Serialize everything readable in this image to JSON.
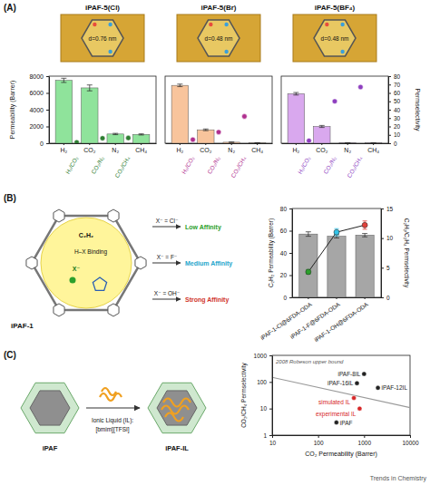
{
  "chart_data": [
    {
      "type": "bar",
      "title": "iPAF-5(Cl)",
      "annotation": "d=0.76 nm",
      "ylabel": "Permeability (Barrer)",
      "categories": [
        "H₂",
        "CO₂",
        "N₂",
        "CH₄"
      ],
      "values": [
        7500,
        6600,
        1100,
        1050
      ],
      "errors": [
        250,
        350,
        80,
        70
      ],
      "color": "#8fe39b",
      "ylim": [
        0,
        8000
      ],
      "yticks": [
        0,
        2000,
        4000,
        6000,
        8000
      ],
      "y2lim": [
        0,
        80
      ],
      "selectivity": {
        "type": "scatter",
        "axis": "y2",
        "marker": "circle",
        "color": "#2e7d32",
        "categories": [
          "H₂/CO₂",
          "CO₂/N₂",
          "CO₂/CH₄"
        ],
        "values": [
          1.1,
          6.0,
          6.3
        ]
      }
    },
    {
      "type": "bar",
      "title": "iPAF-5(Br)",
      "annotation": "d=0.48 nm",
      "categories": [
        "H₂",
        "CO₂",
        "N₂",
        "CH₄"
      ],
      "values": [
        6900,
        1600,
        120,
        50
      ],
      "errors": [
        150,
        100,
        20,
        10
      ],
      "color": "#f8c49c",
      "ylim": [
        0,
        8000
      ],
      "y2lim": [
        0,
        80
      ],
      "selectivity": {
        "type": "scatter",
        "axis": "y2",
        "marker": "circle",
        "color": "#b0308f",
        "categories": [
          "H₂/CO₂",
          "CO₂/N₂",
          "CO₂/CH₄"
        ],
        "values": [
          4.3,
          13.3,
          32
        ]
      }
    },
    {
      "type": "bar",
      "title": "iPAF-5(BF₄)",
      "annotation": "d=0.48 nm",
      "categories": [
        "H₂",
        "CO₂",
        "N₂",
        "CH₄"
      ],
      "values": [
        5900,
        2000,
        40,
        30
      ],
      "errors": [
        150,
        120,
        8,
        6
      ],
      "color": "#d9a8ee",
      "ylim": [
        0,
        8000
      ],
      "y2lim": [
        0,
        80
      ],
      "y2label": "Permselectivity",
      "y2ticks": [
        0,
        10,
        20,
        30,
        40,
        50,
        60,
        70,
        80
      ],
      "selectivity": {
        "type": "scatter",
        "axis": "y2",
        "marker": "circle",
        "color": "#8e3fbf",
        "categories": [
          "H₂/CO₂",
          "CO₂/N₂",
          "CO₂/CH₄"
        ],
        "values": [
          3,
          50,
          67
        ]
      }
    },
    {
      "type": "bar",
      "ylabel": "C₂H₂ Permeability (Barrer)",
      "categories": [
        "iPAF-1-Cl@6FDA-ODA",
        "iPAF-1-F@6FDA-ODA",
        "iPAF-1-OH@6FDA-ODA"
      ],
      "values": [
        57,
        55,
        56
      ],
      "errors": [
        2,
        1.5,
        1.5
      ],
      "color": "#a6a6a6",
      "ylim": [
        0,
        80
      ],
      "yticks": [
        0,
        20,
        40,
        60,
        80
      ],
      "y2label": "C₂H₂/C₂H₄ Permselectivity",
      "y2lim": [
        0,
        15
      ],
      "y2ticks": [
        0,
        5,
        10,
        15
      ],
      "selectivity": {
        "type": "line",
        "axis": "y2",
        "marker": "circle",
        "colors": [
          "#2ca02c",
          "#33c3e8",
          "#e0403a"
        ],
        "values": [
          4.3,
          11,
          12.2
        ],
        "errors": [
          0.4,
          0.6,
          0.7
        ]
      }
    },
    {
      "type": "scatter",
      "log": true,
      "xlabel": "CO₂ Permeability (Barrer)",
      "ylabel": "CO₂/CH₄ Permselectivity",
      "xlim": [
        10,
        10000
      ],
      "ylim": [
        1,
        1000
      ],
      "xticks": [
        10,
        100,
        1000,
        10000
      ],
      "yticks": [
        1,
        10,
        100,
        1000
      ],
      "series": [
        {
          "name": "2008 Robeson upper bound",
          "type": "line",
          "line_style": "solid",
          "color": "#9a9a9a",
          "x": [
            10,
            10000
          ],
          "values": [
            149,
            10.9
          ]
        },
        {
          "type": "scatter",
          "marker": "circle",
          "labels": [
            "iPAF",
            "experimental IL",
            "simulated IL",
            "iPAF-16IL",
            "iPAF-8IL",
            "iPAF-12IL"
          ],
          "x": [
            250,
            800,
            600,
            700,
            1000,
            2000
          ],
          "values": [
            3,
            10,
            25,
            90,
            200,
            60
          ],
          "colors": [
            "#222222",
            "#d62728",
            "#d62728",
            "#222222",
            "#222222",
            "#222222"
          ]
        }
      ]
    }
  ],
  "diagram": {
    "panel_labels": [
      "(A)",
      "(B)",
      "(C)"
    ],
    "panel_b": {
      "framework": "iPAF-1",
      "guest": "C₂H₂",
      "binding": "H–X Binding",
      "anion": "X⁻",
      "anions": [
        "X⁻ = Cl⁻",
        "X⁻ = F⁻",
        "X⁻ = OH⁻"
      ],
      "affinities": [
        "Low Affinity",
        "Medium Affinity",
        "Strong Affinity"
      ]
    },
    "panel_c": {
      "host": "iPAF",
      "ionic_liquid": [
        "Ionic Liquid (IL):",
        "[bmim][TFSI]"
      ],
      "product": "iPAF-IL"
    },
    "footer": "Trends in Chemistry"
  }
}
